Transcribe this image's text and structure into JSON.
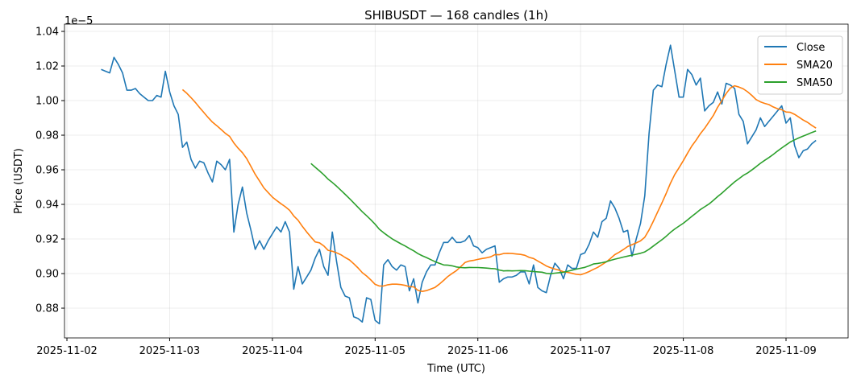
{
  "chart_data": {
    "type": "line",
    "title": "SHIBUSDT — 168 candles (1h)",
    "xlabel": "Time (UTC)",
    "ylabel": "Price (USDT)",
    "y_offset_label": "1e−5",
    "y_scale": 1e-05,
    "start_time": "2025-11-02 08:00",
    "interval_hours": 1,
    "xlim_hours_from_2025_11_02": [
      -0.57,
      182.5
    ],
    "ylim": [
      0.8628,
      1.0442
    ],
    "grid": true,
    "legend_position": "top-right",
    "x_ticks": [
      {
        "label": "2025-11-02",
        "hour": 0
      },
      {
        "label": "2025-11-03",
        "hour": 24
      },
      {
        "label": "2025-11-04",
        "hour": 48
      },
      {
        "label": "2025-11-05",
        "hour": 72
      },
      {
        "label": "2025-11-06",
        "hour": 96
      },
      {
        "label": "2025-11-07",
        "hour": 120
      },
      {
        "label": "2025-11-08",
        "hour": 144
      },
      {
        "label": "2025-11-09",
        "hour": 168
      }
    ],
    "y_ticks": [
      {
        "label": "0.88",
        "value": 0.88
      },
      {
        "label": "0.90",
        "value": 0.9
      },
      {
        "label": "0.92",
        "value": 0.92
      },
      {
        "label": "0.94",
        "value": 0.94
      },
      {
        "label": "0.96",
        "value": 0.96
      },
      {
        "label": "0.98",
        "value": 0.98
      },
      {
        "label": "1.00",
        "value": 1.0
      },
      {
        "label": "1.02",
        "value": 1.02
      },
      {
        "label": "1.04",
        "value": 1.04
      }
    ],
    "series": [
      {
        "name": "Close",
        "color": "#1f77b4",
        "values": [
          1.018,
          1.017,
          1.016,
          1.025,
          1.021,
          1.016,
          1.006,
          1.006,
          1.007,
          1.004,
          1.002,
          1.0,
          1.0,
          1.003,
          1.002,
          1.017,
          1.005,
          0.997,
          0.992,
          0.973,
          0.976,
          0.966,
          0.961,
          0.965,
          0.964,
          0.958,
          0.953,
          0.965,
          0.963,
          0.96,
          0.966,
          0.924,
          0.94,
          0.95,
          0.935,
          0.925,
          0.914,
          0.919,
          0.914,
          0.919,
          0.923,
          0.927,
          0.924,
          0.93,
          0.924,
          0.891,
          0.904,
          0.894,
          0.898,
          0.902,
          0.909,
          0.914,
          0.904,
          0.899,
          0.924,
          0.907,
          0.892,
          0.887,
          0.886,
          0.875,
          0.874,
          0.872,
          0.886,
          0.885,
          0.873,
          0.871,
          0.905,
          0.908,
          0.904,
          0.902,
          0.905,
          0.904,
          0.89,
          0.897,
          0.883,
          0.895,
          0.901,
          0.905,
          0.905,
          0.912,
          0.918,
          0.918,
          0.921,
          0.918,
          0.918,
          0.919,
          0.922,
          0.916,
          0.915,
          0.912,
          0.914,
          0.915,
          0.916,
          0.895,
          0.897,
          0.898,
          0.898,
          0.899,
          0.901,
          0.901,
          0.894,
          0.905,
          0.892,
          0.89,
          0.889,
          0.899,
          0.906,
          0.903,
          0.897,
          0.905,
          0.903,
          0.903,
          0.911,
          0.912,
          0.917,
          0.924,
          0.921,
          0.93,
          0.932,
          0.942,
          0.938,
          0.932,
          0.924,
          0.925,
          0.91,
          0.92,
          0.929,
          0.945,
          0.981,
          1.006,
          1.009,
          1.008,
          1.021,
          1.032,
          1.017,
          1.002,
          1.002,
          1.018,
          1.015,
          1.009,
          1.013,
          0.994,
          0.997,
          0.999,
          1.005,
          0.998,
          1.01,
          1.009,
          1.007,
          0.992,
          0.988,
          0.975,
          0.979,
          0.983,
          0.99,
          0.985,
          0.988,
          0.991,
          0.994,
          0.997,
          0.987,
          0.99,
          0.974,
          0.967,
          0.971,
          0.972,
          0.975,
          0.977
        ]
      },
      {
        "name": "SMA20",
        "color": "#ff7f0e",
        "window": 20
      },
      {
        "name": "SMA50",
        "color": "#2ca02c",
        "window": 50
      }
    ]
  }
}
